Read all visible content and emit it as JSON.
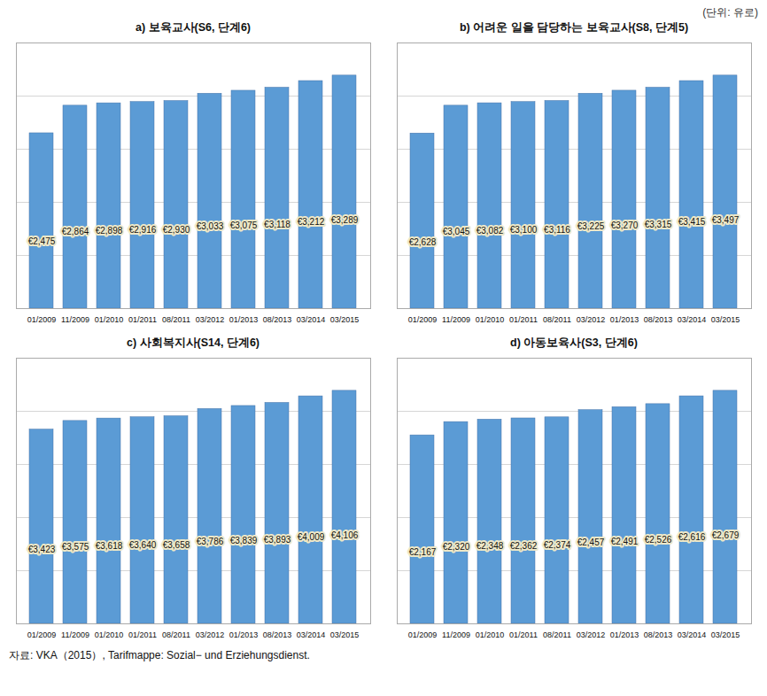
{
  "chart_data": [
    {
      "type": "bar",
      "title": "a) 보육교사(S6, 단계6)",
      "categories": [
        "01/2009",
        "11/2009",
        "01/2010",
        "01/2011",
        "08/2011",
        "03/2012",
        "01/2013",
        "08/2013",
        "03/2014",
        "03/2015"
      ],
      "values": [
        2475,
        2864,
        2898,
        2916,
        2930,
        3033,
        3075,
        3118,
        3212,
        3289
      ],
      "value_labels": [
        "€2,475",
        "€2,864",
        "€2,898",
        "€2,916",
        "€2,930",
        "€3,033",
        "€3,075",
        "€3,118",
        "€3,212",
        "€3,289"
      ],
      "color": "#5B9BD5",
      "ylim": [
        0,
        3749.46
      ],
      "yticks": [
        749.892,
        1499.784,
        2249.676,
        2999.568,
        3749.46
      ],
      "grid": true,
      "data_labels": true,
      "tick_labels": "x"
    },
    {
      "type": "bar",
      "title": "b) 어려운 일을 담당하는 보육교사(S8, 단계5)",
      "categories": [
        "01/2009",
        "11/2009",
        "01/2010",
        "01/2011",
        "08/2011",
        "03/2012",
        "01/2013",
        "08/2013",
        "03/2014",
        "03/2015"
      ],
      "values": [
        2628,
        3045,
        3082,
        3100,
        3116,
        3225,
        3270,
        3315,
        3415,
        3497
      ],
      "value_labels": [
        "€2,628",
        "€3,045",
        "€3,082",
        "€3,100",
        "€3,116",
        "€3,225",
        "€3,270",
        "€3,315",
        "€3,415",
        "€3,497"
      ],
      "color": "#5B9BD5",
      "ylim": [
        0,
        3986.58
      ],
      "yticks": [
        797.316,
        1594.632,
        2391.948,
        3189.264,
        3986.58
      ],
      "grid": true,
      "data_labels": true,
      "tick_labels": "x"
    },
    {
      "type": "bar",
      "title": "c) 사회복지사(S14, 단계6)",
      "categories": [
        "01/2009",
        "11/2009",
        "01/2010",
        "01/2011",
        "08/2011",
        "03/2012",
        "01/2013",
        "08/2013",
        "03/2014",
        "03/2015"
      ],
      "values": [
        3423,
        3575,
        3618,
        3640,
        3658,
        3786,
        3839,
        3893,
        4009,
        4106
      ],
      "value_labels": [
        "€3,423",
        "€3,575",
        "€3,618",
        "€3,640",
        "€3,658",
        "€3,786",
        "€3,839",
        "€3,893",
        "€4,009",
        "€4,106"
      ],
      "color": "#5B9BD5",
      "ylim": [
        0,
        4680.84
      ],
      "yticks": [
        936.168,
        1872.336,
        2808.504,
        3744.672,
        4680.84
      ],
      "grid": true,
      "data_labels": true,
      "tick_labels": "x"
    },
    {
      "type": "bar",
      "title": "d) 아동보육사(S3, 단계6)",
      "categories": [
        "01/2009",
        "11/2009",
        "01/2010",
        "01/2011",
        "08/2011",
        "03/2012",
        "01/2013",
        "08/2013",
        "03/2014",
        "03/2015"
      ],
      "values": [
        2167,
        2320,
        2348,
        2362,
        2374,
        2457,
        2491,
        2526,
        2616,
        2679
      ],
      "value_labels": [
        "€2,167",
        "€2,320",
        "€2,348",
        "€2,362",
        "€2,374",
        "€2,457",
        "€2,491",
        "€2,526",
        "€2,616",
        "€2,679"
      ],
      "color": "#5B9BD5",
      "ylim": [
        0,
        3054.06
      ],
      "yticks": [
        610.812,
        1221.624,
        1832.436,
        2443.248,
        3054.06
      ],
      "grid": true,
      "data_labels": true,
      "tick_labels": "x"
    }
  ],
  "annotations": [
    "(단위: 유로)",
    "자료: VKA（2015）, Tarifmappe: Sozial− und Erziehungsdienst."
  ]
}
